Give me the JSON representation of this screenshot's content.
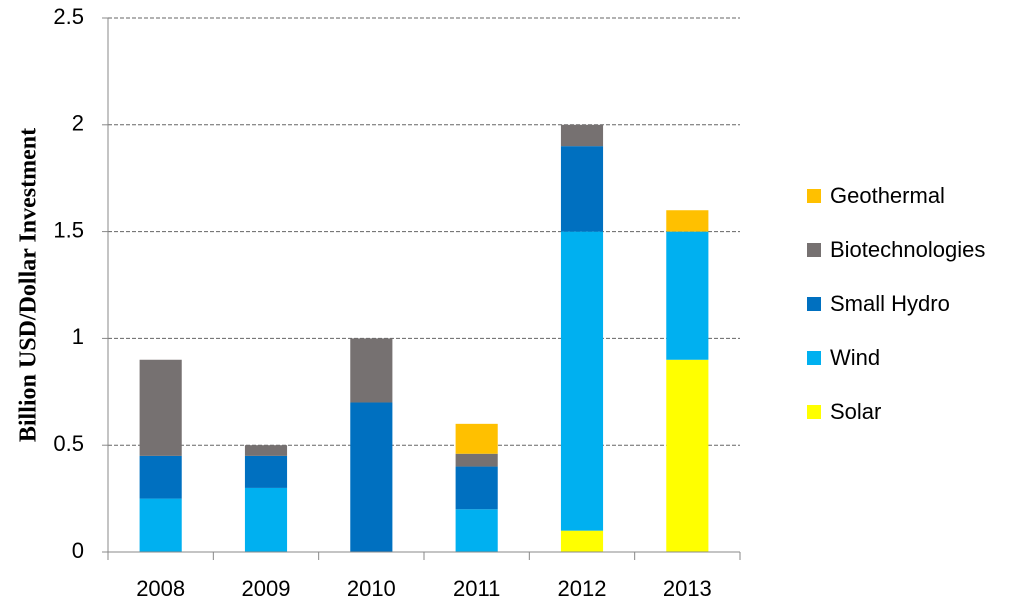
{
  "chart_data": {
    "type": "stacked-bar",
    "y_label": "Billion USD/Dollar Investment",
    "categories": [
      "2008",
      "2009",
      "2010",
      "2011",
      "2012",
      "2013"
    ],
    "series": [
      {
        "name": "Solar",
        "color": "#ffff00",
        "values": [
          0,
          0,
          0,
          0,
          0.1,
          0.9
        ]
      },
      {
        "name": "Wind",
        "color": "#00b0f0",
        "values": [
          0.25,
          0.3,
          0,
          0.2,
          1.4,
          0.6
        ]
      },
      {
        "name": "Small Hydro",
        "color": "#0070c0",
        "values": [
          0.2,
          0.15,
          0.7,
          0.2,
          0.4,
          0
        ]
      },
      {
        "name": "Biotechnologies",
        "color": "#767171",
        "values": [
          0.45,
          0.05,
          0.3,
          0.06,
          0.1,
          0
        ]
      },
      {
        "name": "Geothermal",
        "color": "#ffc000",
        "values": [
          0,
          0,
          0,
          0.14,
          0,
          0.1
        ]
      }
    ],
    "ylim": [
      0,
      2.5
    ],
    "yticks": [
      0,
      0.5,
      1,
      1.5,
      2,
      2.5
    ],
    "grid": true,
    "legend": "right"
  }
}
